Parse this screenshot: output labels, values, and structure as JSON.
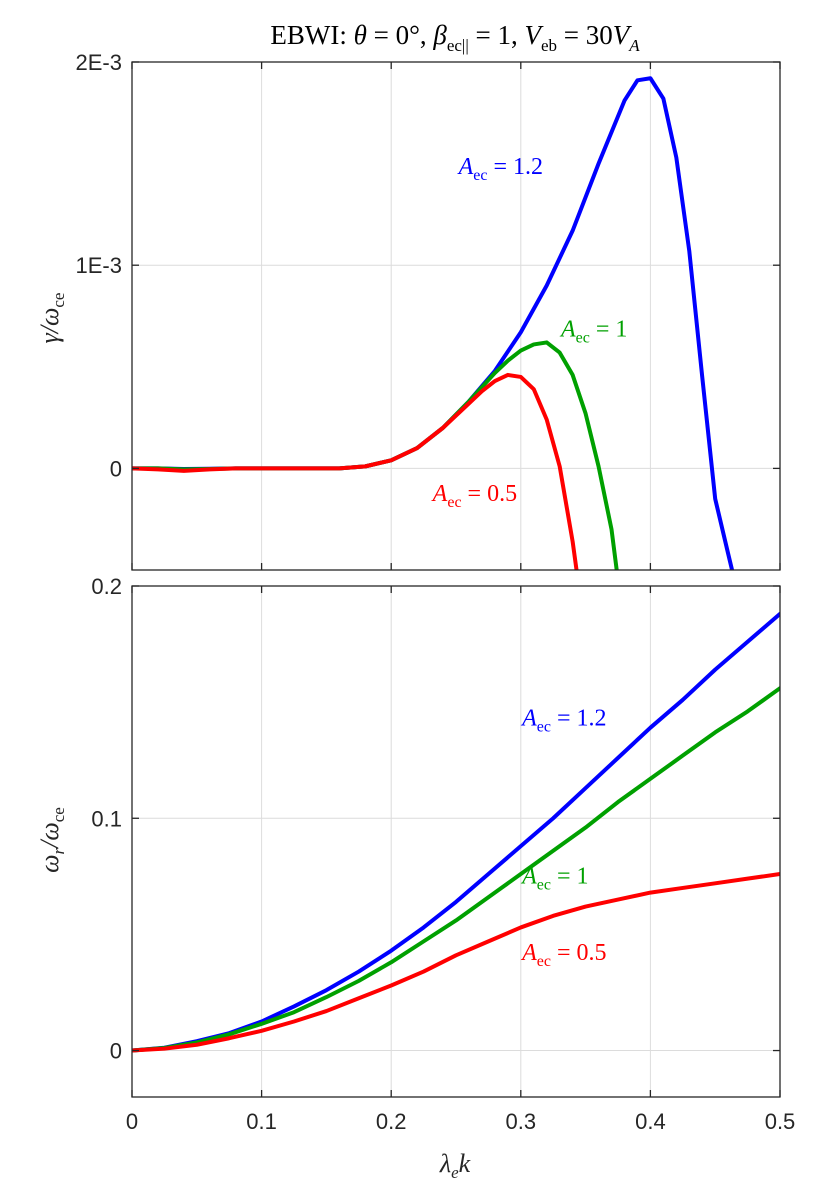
{
  "title": "EBWI: θ = 0°, β_ec|| = 1, V_eb = 30V_A",
  "chart_data": [
    {
      "type": "line",
      "panel": "top",
      "ylabel": "γ/ω_ce",
      "xlim": [
        0,
        0.5
      ],
      "ylim": [
        -0.0005,
        0.002
      ],
      "xticks": [
        0,
        0.1,
        0.2,
        0.3,
        0.4,
        0.5
      ],
      "yticks": [
        0,
        0.001,
        0.002
      ],
      "ytick_labels": [
        "0",
        "1E-3",
        "2E-3"
      ],
      "grid": true,
      "series": [
        {
          "name": "A_ec = 1.2",
          "color": "#0000ff",
          "x": [
            0,
            0.02,
            0.04,
            0.06,
            0.08,
            0.1,
            0.12,
            0.14,
            0.16,
            0.18,
            0.2,
            0.22,
            0.24,
            0.26,
            0.28,
            0.3,
            0.32,
            0.34,
            0.36,
            0.38,
            0.39,
            0.4,
            0.41,
            0.42,
            0.43,
            0.44,
            0.45,
            0.46,
            0.463
          ],
          "y": [
            0,
            0,
            -3e-06,
            -2e-06,
            0,
            0,
            0,
            0,
            0,
            1e-05,
            4e-05,
            0.0001,
            0.0002,
            0.00033,
            0.00048,
            0.00067,
            0.0009,
            0.00117,
            0.0015,
            0.00181,
            0.00191,
            0.00192,
            0.00182,
            0.00153,
            0.00107,
            0.00045,
            -0.00015,
            -0.00042,
            -0.0005
          ]
        },
        {
          "name": "A_ec = 1",
          "color": "#00a000",
          "x": [
            0,
            0.02,
            0.04,
            0.06,
            0.08,
            0.1,
            0.12,
            0.14,
            0.16,
            0.18,
            0.2,
            0.22,
            0.24,
            0.26,
            0.28,
            0.29,
            0.3,
            0.31,
            0.32,
            0.33,
            0.34,
            0.35,
            0.36,
            0.37,
            0.374
          ],
          "y": [
            0,
            0,
            -5e-06,
            -3e-06,
            0,
            0,
            0,
            0,
            0,
            1e-05,
            4e-05,
            0.0001,
            0.0002,
            0.00033,
            0.00047,
            0.00053,
            0.00058,
            0.00061,
            0.00062,
            0.00057,
            0.00046,
            0.00027,
            1e-05,
            -0.0003,
            -0.0005
          ]
        },
        {
          "name": "A_ec = 0.5",
          "color": "#ff0000",
          "x": [
            0,
            0.02,
            0.04,
            0.06,
            0.08,
            0.1,
            0.12,
            0.14,
            0.16,
            0.18,
            0.2,
            0.22,
            0.24,
            0.26,
            0.27,
            0.28,
            0.29,
            0.3,
            0.31,
            0.32,
            0.33,
            0.34,
            0.343
          ],
          "y": [
            0,
            -5e-06,
            -1.2e-05,
            -5e-06,
            0,
            0,
            0,
            0,
            0,
            1e-05,
            4e-05,
            0.0001,
            0.0002,
            0.00032,
            0.00038,
            0.00043,
            0.00046,
            0.00045,
            0.00039,
            0.00024,
            1e-05,
            -0.00036,
            -0.0005
          ]
        }
      ],
      "annotations": [
        {
          "text_italic": "A",
          "sub": "ec",
          "rest": " = 1.2",
          "color": "#0000ff",
          "x": 0.252,
          "y": 0.00145
        },
        {
          "text_italic": "A",
          "sub": "ec",
          "rest": " = 1",
          "color": "#00a000",
          "x": 0.331,
          "y": 0.00065
        },
        {
          "text_italic": "A",
          "sub": "ec",
          "rest": " = 0.5",
          "color": "#ff0000",
          "x": 0.232,
          "y": -0.00016
        }
      ]
    },
    {
      "type": "line",
      "panel": "bottom",
      "xlabel": "λ_e k",
      "ylabel": "ω_r/ω_ce",
      "xlim": [
        0,
        0.5
      ],
      "ylim": [
        -0.02,
        0.2
      ],
      "xticks": [
        0,
        0.1,
        0.2,
        0.3,
        0.4,
        0.5
      ],
      "xtick_labels": [
        "0",
        "0.1",
        "0.2",
        "0.3",
        "0.4",
        "0.5"
      ],
      "yticks": [
        0,
        0.1,
        0.2
      ],
      "ytick_labels": [
        "0",
        "0.1",
        "0.2"
      ],
      "grid": true,
      "series": [
        {
          "name": "A_ec = 1.2",
          "color": "#0000ff",
          "x": [
            0,
            0.025,
            0.05,
            0.075,
            0.1,
            0.125,
            0.15,
            0.175,
            0.2,
            0.225,
            0.25,
            0.275,
            0.3,
            0.325,
            0.35,
            0.375,
            0.4,
            0.425,
            0.45,
            0.475,
            0.5
          ],
          "y": [
            0,
            0.0012,
            0.004,
            0.0075,
            0.0125,
            0.019,
            0.026,
            0.034,
            0.043,
            0.053,
            0.064,
            0.076,
            0.088,
            0.1,
            0.113,
            0.126,
            0.139,
            0.151,
            0.164,
            0.176,
            0.188
          ]
        },
        {
          "name": "A_ec = 1",
          "color": "#00a000",
          "x": [
            0,
            0.025,
            0.05,
            0.075,
            0.1,
            0.125,
            0.15,
            0.175,
            0.2,
            0.225,
            0.25,
            0.275,
            0.3,
            0.325,
            0.35,
            0.375,
            0.4,
            0.425,
            0.45,
            0.475,
            0.5
          ],
          "y": [
            0,
            0.0011,
            0.0035,
            0.007,
            0.0115,
            0.0165,
            0.023,
            0.03,
            0.038,
            0.047,
            0.056,
            0.066,
            0.076,
            0.086,
            0.096,
            0.107,
            0.117,
            0.127,
            0.137,
            0.146,
            0.156
          ]
        },
        {
          "name": "A_ec = 0.5",
          "color": "#ff0000",
          "x": [
            0,
            0.025,
            0.05,
            0.075,
            0.1,
            0.125,
            0.15,
            0.175,
            0.2,
            0.225,
            0.25,
            0.275,
            0.3,
            0.325,
            0.35,
            0.375,
            0.4,
            0.425,
            0.45,
            0.475,
            0.5
          ],
          "y": [
            0,
            0.0008,
            0.0025,
            0.0053,
            0.0085,
            0.0125,
            0.017,
            0.0225,
            0.028,
            0.034,
            0.041,
            0.047,
            0.053,
            0.058,
            0.062,
            0.065,
            0.068,
            0.07,
            0.072,
            0.074,
            0.076
          ]
        }
      ],
      "annotations": [
        {
          "text_italic": "A",
          "sub": "ec",
          "rest": " = 1.2",
          "color": "#0000ff",
          "x": 0.301,
          "y": 0.14
        },
        {
          "text_italic": "A",
          "sub": "ec",
          "rest": " = 1",
          "color": "#00a000",
          "x": 0.301,
          "y": 0.072
        },
        {
          "text_italic": "A",
          "sub": "ec",
          "rest": " = 0.5",
          "color": "#ff0000",
          "x": 0.301,
          "y": 0.039
        }
      ]
    }
  ]
}
